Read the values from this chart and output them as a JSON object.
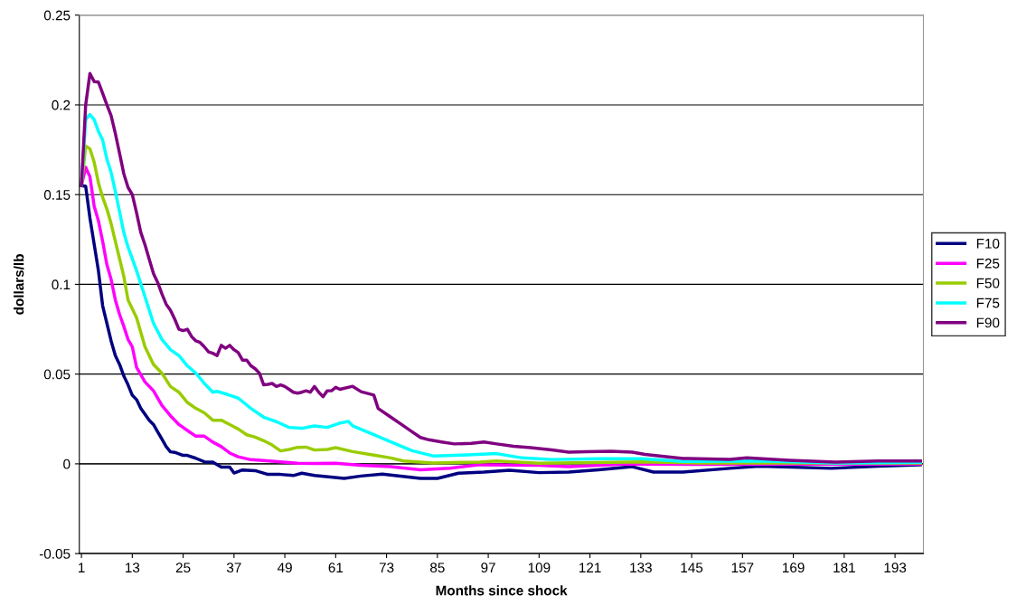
{
  "chart_data": {
    "type": "line",
    "xlabel": "Months since shock",
    "ylabel": "dollars/lb",
    "xlim": [
      0.5,
      199.7
    ],
    "xticks": [
      1,
      13,
      25,
      37,
      49,
      61,
      73,
      85,
      97,
      109,
      121,
      133,
      145,
      157,
      169,
      181,
      193
    ],
    "ylim": [
      -0.05,
      0.25
    ],
    "yticks": [
      -0.05,
      0,
      0.05,
      0.1,
      0.15,
      0.2,
      0.25
    ],
    "grid": "y",
    "legend": "right",
    "marker": "none",
    "line_style": "solid",
    "series": [
      {
        "name": "F10",
        "color": "#000080",
        "x": [
          1,
          2,
          3,
          4,
          5,
          6,
          7,
          8,
          9,
          10,
          11,
          12,
          13,
          14,
          15,
          16,
          17,
          18,
          19,
          20,
          21,
          22,
          23,
          24,
          25,
          26,
          28,
          30,
          32,
          34,
          36,
          37,
          39,
          42,
          45,
          48,
          51,
          53,
          56,
          63,
          67,
          72,
          81,
          85,
          90,
          96,
          102,
          109,
          116,
          123,
          131,
          136,
          143,
          154,
          161,
          178,
          189,
          199
        ],
        "values": [
          0.155,
          0.1546,
          0.137,
          0.1224,
          0.1077,
          0.0881,
          0.0783,
          0.0685,
          0.0603,
          0.0554,
          0.0489,
          0.044,
          0.0382,
          0.0358,
          0.0309,
          0.0276,
          0.0243,
          0.0219,
          0.0178,
          0.0137,
          0.0096,
          0.0067,
          0.0064,
          0.0056,
          0.0047,
          0.0047,
          0.0031,
          0.0011,
          0.001,
          -0.0018,
          -0.0018,
          -0.0051,
          -0.0034,
          -0.0038,
          -0.0059,
          -0.0059,
          -0.0065,
          -0.0052,
          -0.0065,
          -0.0081,
          -0.0068,
          -0.0057,
          -0.0081,
          -0.0081,
          -0.0052,
          -0.0046,
          -0.0036,
          -0.0049,
          -0.0046,
          -0.0033,
          -0.0016,
          -0.0046,
          -0.0046,
          -0.0025,
          -0.0013,
          -0.0025,
          -0.0013,
          -0.0005
        ]
      },
      {
        "name": "F25",
        "color": "#ff00ff",
        "x": [
          1,
          2,
          3,
          4,
          5,
          6,
          7,
          8,
          9,
          10,
          11,
          12,
          13,
          14,
          16,
          18,
          20,
          22,
          24,
          26,
          28,
          30,
          32,
          34,
          36,
          38,
          41,
          44,
          48,
          52,
          56,
          61,
          67,
          74,
          81,
          88,
          95,
          109,
          116,
          130,
          147,
          199
        ],
        "values": [
          0.155,
          0.1652,
          0.16,
          0.1436,
          0.1355,
          0.124,
          0.111,
          0.1028,
          0.0913,
          0.0832,
          0.0766,
          0.0693,
          0.0652,
          0.0538,
          0.0456,
          0.0407,
          0.0325,
          0.0268,
          0.0219,
          0.0186,
          0.0154,
          0.0154,
          0.0121,
          0.0096,
          0.006,
          0.0039,
          0.0023,
          0.0018,
          0.0011,
          0.0003,
          0.0002,
          0.0003,
          -0.0008,
          -0.0016,
          -0.0033,
          -0.0024,
          -0.0005,
          -0.0008,
          -0.0016,
          0,
          -0.0003,
          0
        ]
      },
      {
        "name": "F50",
        "color": "#99cc00",
        "x": [
          1,
          2,
          3,
          4,
          5,
          6,
          7,
          8,
          9,
          10,
          11,
          12,
          14,
          16,
          18,
          20,
          22,
          24,
          26,
          28,
          30,
          32,
          34,
          36,
          38,
          40,
          42,
          44,
          46,
          48,
          50,
          52,
          54,
          56,
          59,
          61,
          65,
          70,
          74,
          77,
          84,
          95,
          99,
          109,
          130,
          133,
          147,
          199
        ],
        "values": [
          0.155,
          0.1771,
          0.1755,
          0.1681,
          0.1567,
          0.1485,
          0.142,
          0.1338,
          0.124,
          0.1142,
          0.1044,
          0.0913,
          0.0815,
          0.0652,
          0.0554,
          0.0505,
          0.0431,
          0.0399,
          0.0342,
          0.0309,
          0.0284,
          0.0243,
          0.0243,
          0.0219,
          0.0194,
          0.0162,
          0.0149,
          0.0129,
          0.0105,
          0.0072,
          0.008,
          0.0092,
          0.0093,
          0.0077,
          0.008,
          0.009,
          0.0068,
          0.0049,
          0.0033,
          0.0016,
          0.0005,
          0.001,
          0.0016,
          0.0003,
          0.001,
          0.0011,
          0.0005,
          0.0005
        ]
      },
      {
        "name": "F75",
        "color": "#00ffff",
        "x": [
          1,
          2,
          3,
          4,
          5,
          6,
          7,
          8,
          9,
          10,
          11,
          12,
          14,
          16,
          18,
          20,
          22,
          24,
          26,
          28,
          30,
          32,
          33,
          35,
          38,
          41,
          44,
          47,
          50,
          53,
          56,
          59,
          62,
          64,
          65,
          70,
          74,
          79,
          84,
          91,
          99,
          105,
          112,
          123,
          133,
          143,
          161,
          179,
          199
        ],
        "values": [
          0.155,
          0.1918,
          0.1946,
          0.1918,
          0.1853,
          0.1804,
          0.1698,
          0.1624,
          0.1518,
          0.1404,
          0.1289,
          0.1208,
          0.1077,
          0.093,
          0.0783,
          0.0693,
          0.0636,
          0.0603,
          0.0546,
          0.0505,
          0.0448,
          0.0399,
          0.0404,
          0.039,
          0.0366,
          0.0309,
          0.026,
          0.0235,
          0.0203,
          0.0198,
          0.0211,
          0.0203,
          0.0227,
          0.0236,
          0.0212,
          0.0163,
          0.0122,
          0.0073,
          0.0044,
          0.0049,
          0.0057,
          0.0033,
          0.0024,
          0.0028,
          0.0029,
          0.0013,
          0.0016,
          0.0005,
          0.0008
        ]
      },
      {
        "name": "F90",
        "color": "#800080",
        "x": [
          1,
          2,
          3,
          4,
          5,
          6,
          7,
          8,
          9,
          10,
          11,
          12,
          13,
          14,
          15,
          16,
          17,
          18,
          19,
          20,
          21,
          22,
          23,
          24,
          25,
          26,
          27,
          28,
          29,
          30,
          31,
          32,
          33,
          34,
          35,
          36,
          37,
          38,
          39,
          40,
          41,
          42,
          43,
          44,
          45,
          46,
          47,
          48,
          49,
          50,
          51,
          52,
          53,
          54,
          55,
          56,
          57,
          58,
          59,
          60,
          61,
          62,
          65,
          67,
          70,
          71,
          74,
          77,
          79,
          81,
          83,
          86,
          89,
          93,
          96,
          99,
          103,
          107,
          112,
          116,
          120,
          126,
          131,
          134,
          143,
          154,
          158,
          168,
          179,
          189,
          199
        ],
        "values": [
          0.155,
          0.2,
          0.2175,
          0.213,
          0.2127,
          0.2065,
          0.2,
          0.194,
          0.184,
          0.173,
          0.1616,
          0.154,
          0.15,
          0.14,
          0.129,
          0.122,
          0.114,
          0.106,
          0.101,
          0.0946,
          0.0889,
          0.0856,
          0.0807,
          0.075,
          0.0742,
          0.075,
          0.0709,
          0.0685,
          0.0676,
          0.0652,
          0.0624,
          0.0616,
          0.0603,
          0.066,
          0.0644,
          0.066,
          0.0636,
          0.062,
          0.0578,
          0.0578,
          0.0546,
          0.053,
          0.0505,
          0.044,
          0.0443,
          0.0448,
          0.0431,
          0.044,
          0.0431,
          0.0415,
          0.0399,
          0.0394,
          0.0399,
          0.0407,
          0.0399,
          0.0431,
          0.0399,
          0.0374,
          0.0407,
          0.0407,
          0.0426,
          0.0415,
          0.0432,
          0.0402,
          0.0383,
          0.0309,
          0.026,
          0.0212,
          0.0179,
          0.0147,
          0.0134,
          0.0122,
          0.0111,
          0.0114,
          0.0122,
          0.0111,
          0.0098,
          0.009,
          0.0078,
          0.0065,
          0.0068,
          0.007,
          0.0065,
          0.0052,
          0.003,
          0.0025,
          0.0033,
          0.002,
          0.001,
          0.0016,
          0.0016
        ]
      }
    ]
  }
}
